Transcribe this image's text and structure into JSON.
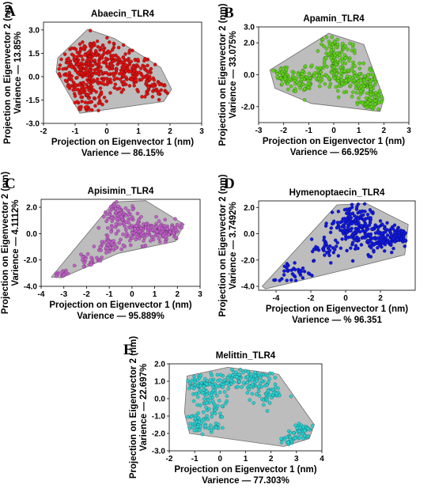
{
  "chart_data": [
    {
      "type": "scatter",
      "letter": "A",
      "title": "Abaecin_TLR4",
      "xlabel": "Projection on Eigenvector 1 (nm)",
      "xvariance": "Varience — 86.15%",
      "ylabel": "Projection on Eigenvector 2 (nm)",
      "yvariance": "Varience — 13.85%",
      "xlim": [
        -2,
        3
      ],
      "ylim": [
        -3.0,
        3.5
      ],
      "xticks": [
        "-2",
        "-1",
        "0",
        "1",
        "2",
        "3"
      ],
      "yticks": [
        "-3.0",
        "-1.5",
        "0.0",
        "1.5",
        "3.0"
      ],
      "hull": [
        [
          -1.55,
          1.2
        ],
        [
          -0.6,
          3.05
        ],
        [
          0.25,
          2.45
        ],
        [
          1.7,
          0.6
        ],
        [
          2.05,
          -0.8
        ],
        [
          1.8,
          -1.6
        ],
        [
          -0.85,
          -2.35
        ],
        [
          -1.6,
          0.3
        ]
      ],
      "point_color": "#e01010",
      "clusters": [
        {
          "x": -0.9,
          "y": 0.3,
          "sx": 0.35,
          "sy": 0.75,
          "n": 140
        },
        {
          "x": -0.5,
          "y": 1.6,
          "sx": 0.35,
          "sy": 0.6,
          "n": 70
        },
        {
          "x": 0.1,
          "y": 0.5,
          "sx": 0.45,
          "sy": 0.7,
          "n": 120
        },
        {
          "x": 0.9,
          "y": 0.2,
          "sx": 0.4,
          "sy": 0.7,
          "n": 110
        },
        {
          "x": -0.6,
          "y": -1.4,
          "sx": 0.3,
          "sy": 0.5,
          "n": 60
        },
        {
          "x": 1.5,
          "y": -0.7,
          "sx": 0.25,
          "sy": 0.35,
          "n": 40
        }
      ]
    },
    {
      "type": "scatter",
      "letter": "B",
      "title": "Apamin_TLR4",
      "xlabel": "Projection on Eigenvector 1 (nm)",
      "xvariance": "Varience — 66.925%",
      "ylabel": "Projection on Eigenvector 2 (nm)",
      "yvariance": "Varience — 33.075%",
      "xlim": [
        -3,
        3
      ],
      "ylim": [
        -3.0,
        3.0
      ],
      "xticks": [
        "-3",
        "-2",
        "-1",
        "0",
        "1",
        "2",
        "3"
      ],
      "yticks": [
        "-2.0",
        "0.0",
        "2.0",
        "3.0"
      ],
      "hull": [
        [
          -2.55,
          0.3
        ],
        [
          -0.2,
          2.6
        ],
        [
          1.2,
          1.9
        ],
        [
          2.0,
          -1.5
        ],
        [
          1.85,
          -2.3
        ],
        [
          -0.9,
          -1.8
        ],
        [
          -2.35,
          -0.85
        ]
      ],
      "point_color": "#5ed11a",
      "clusters": [
        {
          "x": -2.0,
          "y": -0.2,
          "sx": 0.25,
          "sy": 0.4,
          "n": 50
        },
        {
          "x": -1.1,
          "y": -0.3,
          "sx": 0.35,
          "sy": 0.45,
          "n": 70
        },
        {
          "x": 0.0,
          "y": 1.3,
          "sx": 0.35,
          "sy": 0.6,
          "n": 100
        },
        {
          "x": 0.4,
          "y": -0.3,
          "sx": 0.45,
          "sy": 0.5,
          "n": 100
        },
        {
          "x": 1.4,
          "y": -0.6,
          "sx": 0.3,
          "sy": 0.6,
          "n": 80
        },
        {
          "x": 1.5,
          "y": -1.7,
          "sx": 0.25,
          "sy": 0.3,
          "n": 40
        }
      ]
    },
    {
      "type": "scatter",
      "letter": "C",
      "title": "Apisimin_TLR4",
      "xlabel": "Projection on Eigenvector 1 (nm)",
      "xvariance": "Varience — 95.889%",
      "ylabel": "Projection on Eigenvector 2 (nm)",
      "yvariance": "Varience — 4.1112%",
      "xlim": [
        -4,
        3
      ],
      "ylim": [
        -4.0,
        2.6
      ],
      "xticks": [
        "-4",
        "-3",
        "-2",
        "-1",
        "0",
        "1",
        "2",
        "3"
      ],
      "yticks": [
        "-4.0",
        "-2.0",
        "0.0",
        "2.0"
      ],
      "hull": [
        [
          -3.55,
          -3.3
        ],
        [
          -0.8,
          2.4
        ],
        [
          0.6,
          2.5
        ],
        [
          2.3,
          0.7
        ],
        [
          1.9,
          -0.6
        ],
        [
          -0.6,
          -1.5
        ],
        [
          -3.1,
          -3.35
        ]
      ],
      "point_color": "#c05fc8",
      "clusters": [
        {
          "x": -0.5,
          "y": 1.3,
          "sx": 0.45,
          "sy": 0.5,
          "n": 90
        },
        {
          "x": 0.5,
          "y": 0.1,
          "sx": 0.5,
          "sy": 0.45,
          "n": 110
        },
        {
          "x": 1.6,
          "y": 0.1,
          "sx": 0.35,
          "sy": 0.35,
          "n": 70
        },
        {
          "x": -1.0,
          "y": -0.9,
          "sx": 0.3,
          "sy": 0.4,
          "n": 40
        },
        {
          "x": -1.8,
          "y": -2.2,
          "sx": 0.3,
          "sy": 0.25,
          "n": 25
        },
        {
          "x": -3.0,
          "y": -3.0,
          "sx": 0.25,
          "sy": 0.15,
          "n": 15
        }
      ]
    },
    {
      "type": "scatter",
      "letter": "D",
      "title": "Hymenoptaecin_TLR4",
      "xlabel": "Projection on Eigenvector 1 (nm)",
      "xvariance": "Varience — % 96.351",
      "ylabel": "Projection on Eigenvector 2 (nm)",
      "yvariance": "Varience — 3.7492%",
      "xlim": [
        -5,
        4
      ],
      "ylim": [
        -4.3,
        2.5
      ],
      "xticks": [
        "-4",
        "-2",
        "0",
        "2"
      ],
      "yticks": [
        "-4.0",
        "-2.0",
        "0.0",
        "2.0"
      ],
      "hull": [
        [
          -4.8,
          -4.0
        ],
        [
          -0.5,
          2.2
        ],
        [
          1.2,
          2.3
        ],
        [
          3.6,
          0.7
        ],
        [
          3.4,
          -1.6
        ],
        [
          0.1,
          -2.7
        ],
        [
          -4.6,
          -4.2
        ]
      ],
      "point_color": "#1018e0",
      "clusters": [
        {
          "x": 0.3,
          "y": 0.8,
          "sx": 0.6,
          "sy": 0.7,
          "n": 140
        },
        {
          "x": 1.7,
          "y": -0.3,
          "sx": 0.7,
          "sy": 0.6,
          "n": 130
        },
        {
          "x": 3.0,
          "y": -0.1,
          "sx": 0.35,
          "sy": 0.45,
          "n": 60
        },
        {
          "x": -1.0,
          "y": -1.2,
          "sx": 0.5,
          "sy": 0.4,
          "n": 40
        },
        {
          "x": -3.0,
          "y": -2.9,
          "sx": 0.6,
          "sy": 0.4,
          "n": 35
        }
      ]
    },
    {
      "type": "scatter",
      "letter": "E",
      "title": "Melittin_TLR4",
      "xlabel": "Projection on Eigenvector 1 (nm)",
      "xvariance": "Varience — 77.303%",
      "ylabel": "Projection on Eigenvector 2 (nm)",
      "yvariance": "Varience — 22.697%",
      "xlim": [
        -2,
        4
      ],
      "ylim": [
        -3.0,
        2.0
      ],
      "xticks": [
        "-2",
        "-1",
        "0",
        "1",
        "2",
        "3",
        "4"
      ],
      "yticks": [
        "-3.0",
        "-2.0",
        "-1.0",
        "0.0",
        "1.0",
        "2.0"
      ],
      "hull": [
        [
          -1.3,
          1.3
        ],
        [
          0.3,
          1.8
        ],
        [
          2.3,
          1.4
        ],
        [
          3.7,
          -1.5
        ],
        [
          3.5,
          -2.3
        ],
        [
          2.5,
          -2.75
        ],
        [
          -1.2,
          -2.0
        ],
        [
          -1.4,
          -0.8
        ]
      ],
      "point_color": "#29cfd1",
      "clusters": [
        {
          "x": -0.6,
          "y": 0.9,
          "sx": 0.45,
          "sy": 0.3,
          "n": 70
        },
        {
          "x": 0.9,
          "y": 1.2,
          "sx": 0.6,
          "sy": 0.35,
          "n": 90
        },
        {
          "x": -0.3,
          "y": -0.3,
          "sx": 0.3,
          "sy": 0.5,
          "n": 50
        },
        {
          "x": -0.9,
          "y": -1.5,
          "sx": 0.4,
          "sy": 0.3,
          "n": 50
        },
        {
          "x": 1.8,
          "y": 0.3,
          "sx": 0.35,
          "sy": 0.4,
          "n": 50
        },
        {
          "x": 3.2,
          "y": -1.9,
          "sx": 0.25,
          "sy": 0.3,
          "n": 45
        },
        {
          "x": 2.7,
          "y": -2.4,
          "sx": 0.2,
          "sy": 0.2,
          "n": 20
        }
      ]
    }
  ],
  "colors": {
    "hull_fill": "#bdbdbd",
    "hull_stroke": "#6e6e6e"
  }
}
